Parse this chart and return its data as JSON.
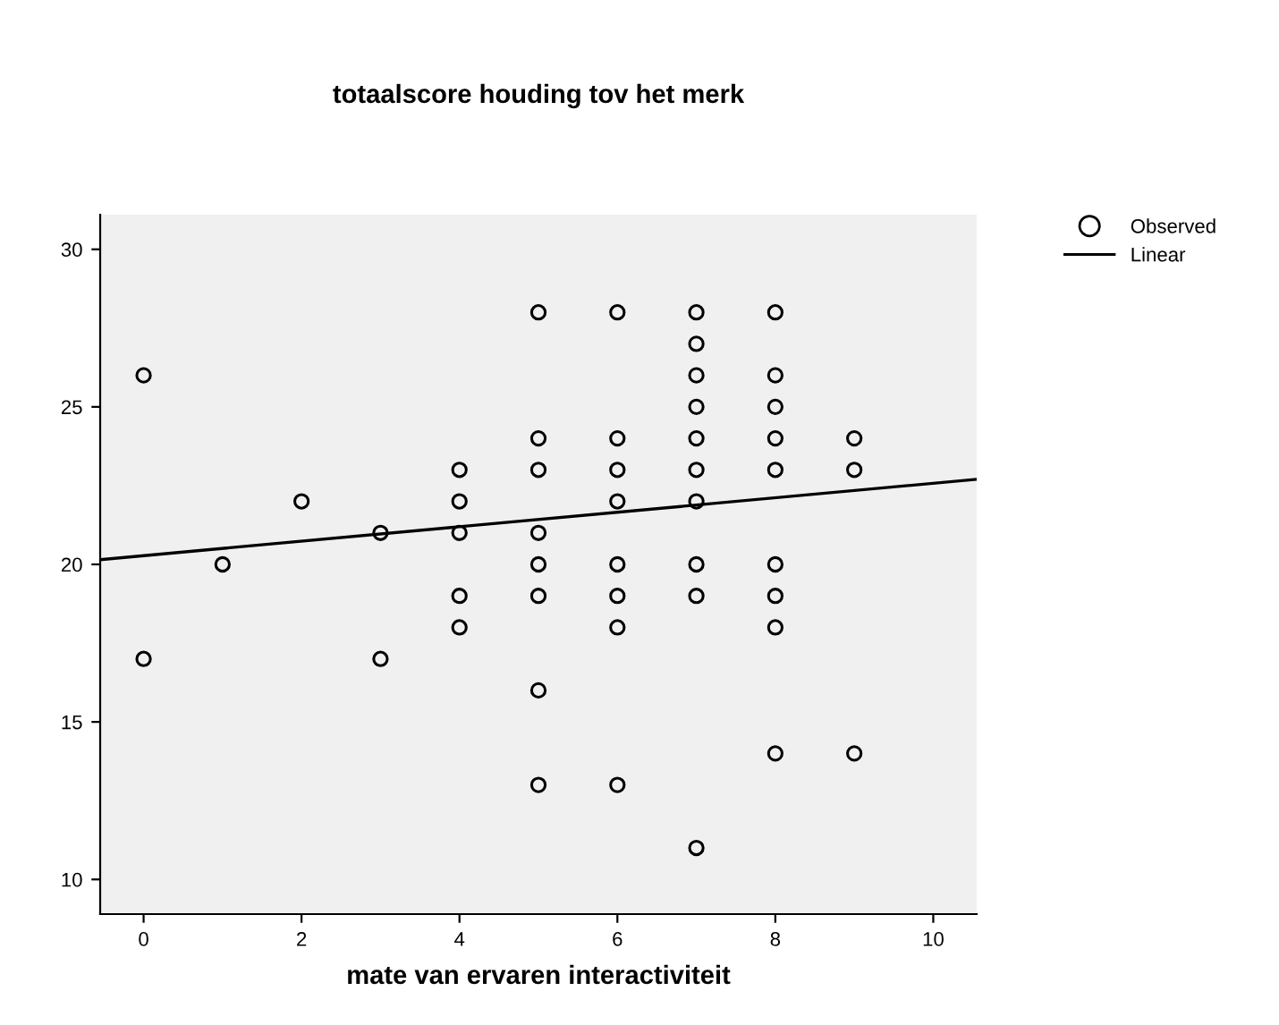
{
  "chart_data": {
    "type": "scatter",
    "title": "totaalscore houding tov het merk",
    "xlabel": "mate van ervaren interactiviteit",
    "xlim": [
      -0.55,
      10.55
    ],
    "xticks": [
      0,
      2,
      4,
      6,
      8,
      10
    ],
    "ylim": [
      8.9,
      31.1
    ],
    "yticks": [
      10,
      15,
      20,
      25,
      30
    ],
    "grid": false,
    "legend": "top right",
    "series": [
      {
        "name": "Observed",
        "marker": "circle",
        "color": "#000000",
        "x": [
          0,
          0,
          1,
          2,
          3,
          3,
          4,
          4,
          4,
          4,
          4,
          5,
          5,
          5,
          5,
          5,
          5,
          5,
          5,
          6,
          6,
          6,
          6,
          6,
          6,
          6,
          6,
          7,
          7,
          7,
          7,
          7,
          7,
          7,
          7,
          7,
          7,
          8,
          8,
          8,
          8,
          8,
          8,
          8,
          8,
          8,
          9,
          9,
          9
        ],
        "values": [
          26,
          17,
          20,
          22,
          21,
          17,
          23,
          22,
          21,
          19,
          18,
          28,
          24,
          23,
          21,
          20,
          19,
          16,
          13,
          28,
          24,
          23,
          22,
          20,
          19,
          18,
          13,
          28,
          27,
          26,
          25,
          24,
          23,
          22,
          20,
          19,
          11,
          28,
          26,
          25,
          24,
          23,
          20,
          19,
          18,
          14,
          24,
          23,
          14
        ]
      },
      {
        "name": "Linear",
        "type": "line",
        "marker": "none",
        "color": "#000000",
        "x": [
          -0.55,
          10.55
        ],
        "values": [
          20.15,
          22.7
        ]
      }
    ]
  }
}
